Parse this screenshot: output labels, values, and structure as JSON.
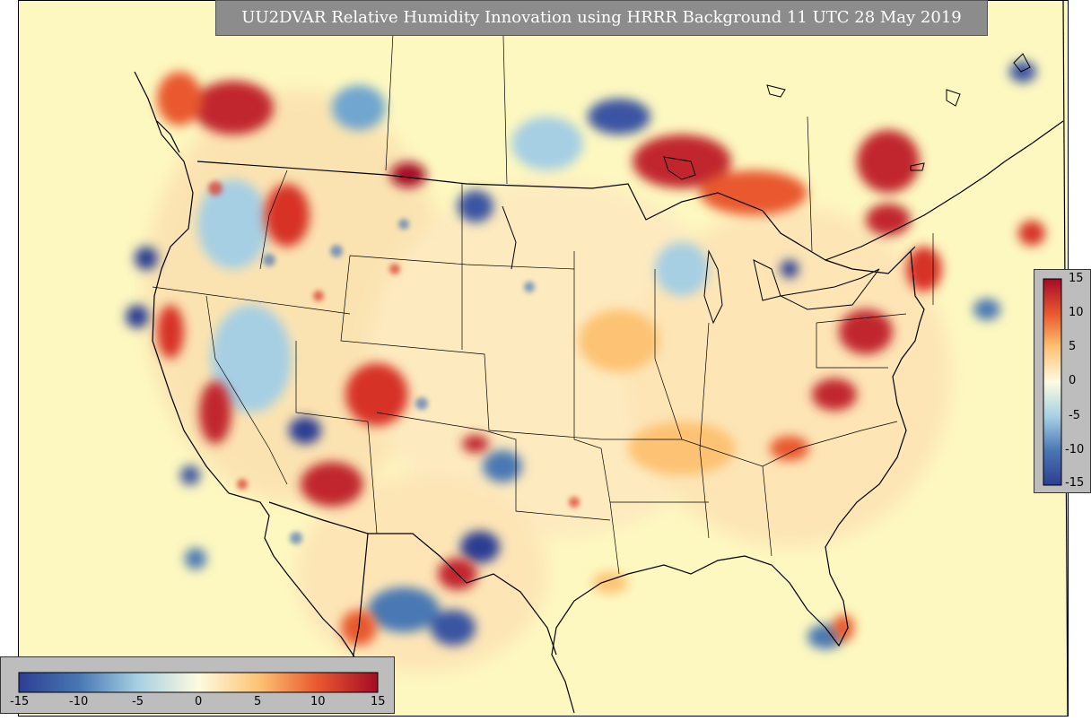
{
  "title": "UU2DVAR Relative Humidity Innovation using HRRR Background 11 UTC 28 May 2019",
  "colorbar_ticks_horizontal": [
    "-15",
    "-10",
    "-5",
    "0",
    "5",
    "10",
    "15"
  ],
  "colorbar_ticks_vertical": [
    "15",
    "10",
    "5",
    "0",
    "-5",
    "-10",
    "-15"
  ],
  "colormap": {
    "name": "RdYlBu_r",
    "min": -15,
    "max": 15,
    "low_color": "#2c3e93",
    "mid_color": "#fbf6c4",
    "high_color": "#a50b26"
  },
  "legend_placement": {
    "horizontal": "bottom-left",
    "vertical": "right-middle"
  }
}
